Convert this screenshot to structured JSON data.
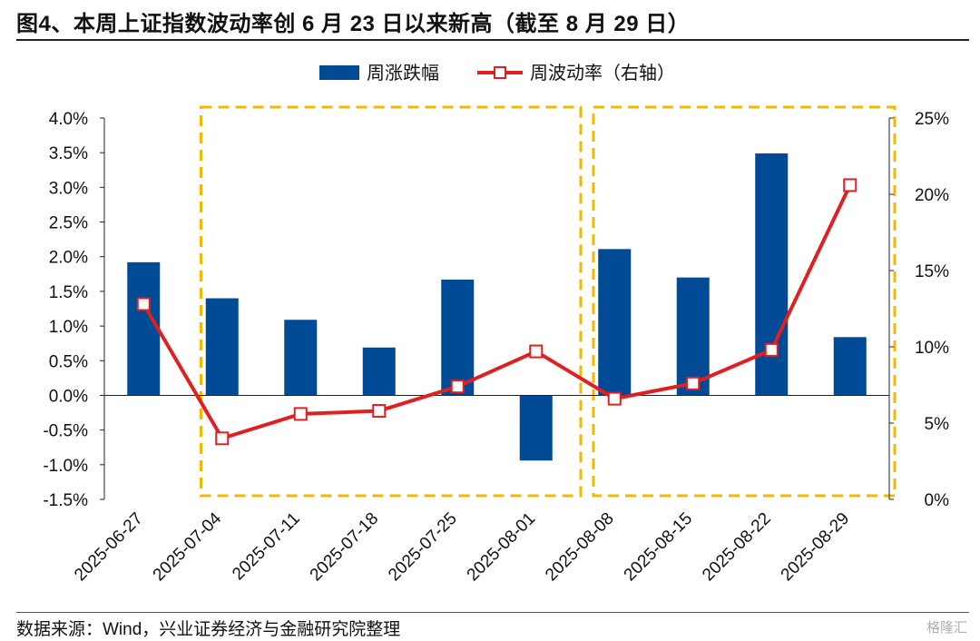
{
  "title": "图4、本周上证指数波动率创 6 月 23 日以来新高（截至 8 月 29 日）",
  "source": "数据来源：Wind，兴业证券经济与金融研究院整理",
  "watermark": "格隆汇",
  "chart_data": {
    "type": "bar+line",
    "categories": [
      "2025-06-27",
      "2025-07-04",
      "2025-07-11",
      "2025-07-18",
      "2025-07-25",
      "2025-08-01",
      "2025-08-08",
      "2025-08-15",
      "2025-08-22",
      "2025-08-29"
    ],
    "series": [
      {
        "name": "周涨跌幅",
        "type": "bar",
        "axis": "left",
        "color": "#004a96",
        "values": [
          1.92,
          1.4,
          1.09,
          0.69,
          1.67,
          -0.94,
          2.11,
          1.7,
          3.49,
          0.84
        ]
      },
      {
        "name": "周波动率（右轴）",
        "type": "line",
        "axis": "right",
        "color": "#e02020",
        "values": [
          12.8,
          4.0,
          5.6,
          5.8,
          7.4,
          9.7,
          6.6,
          7.6,
          9.8,
          20.6
        ]
      }
    ],
    "y_left": {
      "min": -1.5,
      "max": 4.0,
      "step": 0.5,
      "format": "percent1"
    },
    "y_right": {
      "min": 0,
      "max": 25,
      "step": 5,
      "format": "percent0"
    },
    "highlight_ranges": [
      {
        "from": "2025-07-04",
        "to": "2025-08-01",
        "color": "#f5b800"
      },
      {
        "from": "2025-08-08",
        "to": "2025-08-29",
        "color": "#f5b800"
      }
    ],
    "legend_placement": "top-center",
    "grid": false
  }
}
